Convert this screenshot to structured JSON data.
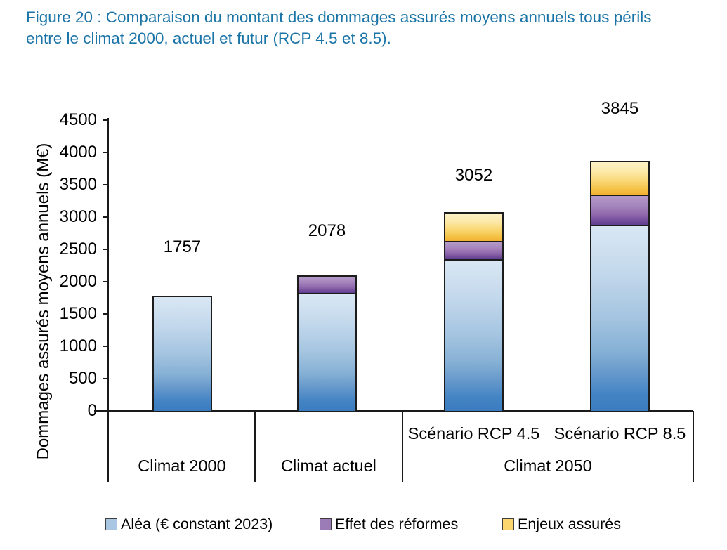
{
  "caption": {
    "line1": "Figure 20 : Comparaison du montant des dommages assurés moyens annuels tous périls",
    "line2": "entre le climat 2000, actuel et futur (RCP 4.5 et 8.5)."
  },
  "chart_data": {
    "type": "bar",
    "stacked": true,
    "title": "",
    "ylabel": "Dommages assurés moyens annuels (M€)",
    "xlabel": "",
    "ylim": [
      0,
      4500
    ],
    "ytick_step": 500,
    "grid": false,
    "legend_position": "bottom",
    "categories": [
      "Climat 2000",
      "Climat actuel",
      "Scénario RCP 4.5",
      "Scénario RCP 8.5"
    ],
    "series": [
      {
        "name": "Aléa (€ constant 2023)",
        "values": [
          1757,
          1830,
          2347,
          2877
        ],
        "color": "#a9c7e3"
      },
      {
        "name": "Effet des réformes",
        "values": [
          0,
          248,
          281,
          476
        ],
        "color": "#9b7cb7"
      },
      {
        "name": "Enjeux assurés",
        "values": [
          0,
          0,
          424,
          492
        ],
        "color": "#fbd66e"
      }
    ],
    "totals": [
      1757,
      2078,
      3052,
      3845
    ],
    "x_groups": [
      {
        "label": "Climat 2000",
        "bar_indexes": [
          0
        ],
        "sub_labels": []
      },
      {
        "label": "Climat actuel",
        "bar_indexes": [
          1
        ],
        "sub_labels": []
      },
      {
        "label": "Climat 2050",
        "bar_indexes": [
          2,
          3
        ],
        "sub_labels": [
          "Scénario RCP 4.5",
          "Scénario RCP 8.5"
        ]
      }
    ]
  }
}
